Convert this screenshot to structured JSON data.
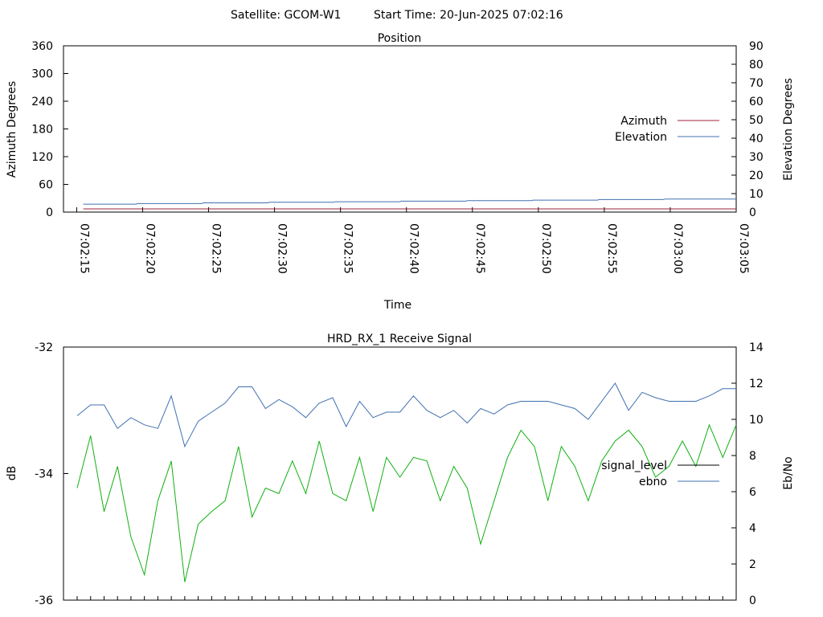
{
  "header": {
    "satellite_label": "Satellite: GCOM-W1",
    "start_time_label": "Start Time: 20-Jun-2025 07:02:16"
  },
  "colors": {
    "azimuth": "#a0203c",
    "elevation": "#4070b0",
    "signal_level": "#000000",
    "ebno_legend": "#4070b0",
    "green_series": "#10b010",
    "blue_series": "#4070b0"
  },
  "chart_data": [
    {
      "type": "line",
      "title": "Position",
      "xlabel": "Time",
      "ylabel": "Azimuth Degrees",
      "y2label": "Elevation Degrees",
      "ylim": [
        0,
        360
      ],
      "y2lim": [
        0,
        90
      ],
      "yticks": [
        "0",
        "60",
        "120",
        "180",
        "240",
        "300",
        "360"
      ],
      "y2ticks": [
        "0",
        "10",
        "20",
        "30",
        "40",
        "50",
        "60",
        "70",
        "80",
        "90"
      ],
      "xticks": [
        "07:02:15",
        "07:02:20",
        "07:02:25",
        "07:02:30",
        "07:02:35",
        "07:02:40",
        "07:02:45",
        "07:02:50",
        "07:02:55",
        "07:03:00",
        "07:03:05"
      ],
      "legend_position": "right",
      "series": [
        {
          "name": "Azimuth",
          "axis": "left",
          "x_seconds": [
            0.5,
            50
          ],
          "values": [
            7,
            7
          ]
        },
        {
          "name": "Elevation",
          "axis": "right",
          "x_seconds": [
            0.5,
            4.5,
            4.6,
            9.5,
            9.6,
            14.5,
            14.6,
            19.5,
            19.6,
            24.5,
            24.6,
            29.5,
            29.6,
            34.5,
            34.6,
            39.5,
            39.6,
            44.5,
            44.6,
            50
          ],
          "values": [
            4.3,
            4.3,
            4.6,
            4.6,
            5.0,
            5.0,
            5.3,
            5.3,
            5.6,
            5.6,
            5.9,
            5.9,
            6.2,
            6.2,
            6.5,
            6.5,
            6.8,
            6.8,
            7.1,
            7.1
          ]
        }
      ]
    },
    {
      "type": "line",
      "title": "HRD_RX_1 Receive Signal",
      "xlabel": "",
      "ylabel": "dB",
      "y2label": "Eb/No",
      "ylim": [
        -36,
        -32
      ],
      "y2lim": [
        0,
        14
      ],
      "yticks": [
        "-36",
        "-34",
        "-32"
      ],
      "y2ticks": [
        "0",
        "2",
        "4",
        "6",
        "8",
        "10",
        "12",
        "14"
      ],
      "x_count": 50,
      "legend_position": "right",
      "legend": [
        {
          "label": "signal_level",
          "color_key": "signal_level"
        },
        {
          "label": "ebno",
          "color_key": "ebno_legend"
        }
      ],
      "series": [
        {
          "color_key": "green_series",
          "axis": "right",
          "values": [
            6.2,
            9.1,
            4.9,
            7.4,
            3.5,
            1.4,
            5.5,
            7.7,
            1.0,
            4.2,
            4.9,
            5.5,
            8.5,
            4.6,
            6.2,
            5.9,
            7.7,
            5.9,
            8.8,
            5.9,
            5.5,
            7.9,
            4.9,
            7.9,
            6.8,
            7.9,
            7.7,
            5.5,
            7.4,
            6.2,
            3.1,
            5.5,
            7.9,
            9.4,
            8.5,
            5.5,
            8.5,
            7.4,
            5.5,
            7.7,
            8.8,
            9.4,
            8.5,
            6.8,
            7.4,
            8.8,
            7.4,
            9.7,
            7.9,
            9.7
          ]
        },
        {
          "color_key": "blue_series",
          "axis": "right",
          "values": [
            10.2,
            10.8,
            10.8,
            9.5,
            10.1,
            9.7,
            9.5,
            11.3,
            8.5,
            9.9,
            10.4,
            10.9,
            11.8,
            11.8,
            10.6,
            11.1,
            10.7,
            10.1,
            10.9,
            11.2,
            9.6,
            11.0,
            10.1,
            10.4,
            10.4,
            11.3,
            10.5,
            10.1,
            10.5,
            9.8,
            10.6,
            10.3,
            10.8,
            11.0,
            11.0,
            11.0,
            10.8,
            10.6,
            10.0,
            11.0,
            12.0,
            10.5,
            11.5,
            11.2,
            11.0,
            11.0,
            11.0,
            11.3,
            11.7,
            11.7
          ]
        }
      ]
    }
  ]
}
